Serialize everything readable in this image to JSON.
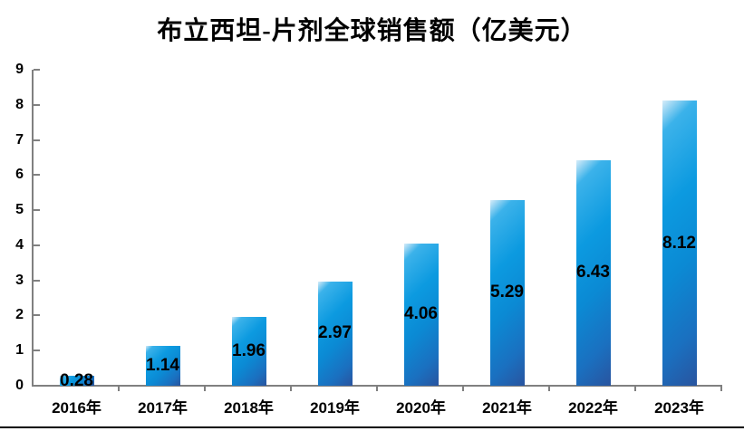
{
  "chart_data": {
    "type": "bar",
    "title": "布立西坦-片剂全球销售额（亿美元）",
    "categories": [
      "2016年",
      "2017年",
      "2018年",
      "2019年",
      "2020年",
      "2021年",
      "2022年",
      "2023年"
    ],
    "values": [
      0.28,
      1.14,
      1.96,
      2.97,
      4.06,
      5.29,
      6.43,
      8.12
    ],
    "xlabel": "",
    "ylabel": "",
    "ylim": [
      0,
      9
    ],
    "yticks": [
      0,
      1,
      2,
      3,
      4,
      5,
      6,
      7,
      8,
      9
    ],
    "grid": false,
    "legend": false,
    "label_position": "inside-center",
    "colors": {
      "bar_gradient": [
        "#d6ecf9",
        "#3bb2ea",
        "#0c9ae0",
        "#0b8ad4",
        "#1a70c0",
        "#29549f"
      ],
      "axis": "#808080",
      "text": "#000000",
      "bottom_rule": "#000000"
    }
  }
}
